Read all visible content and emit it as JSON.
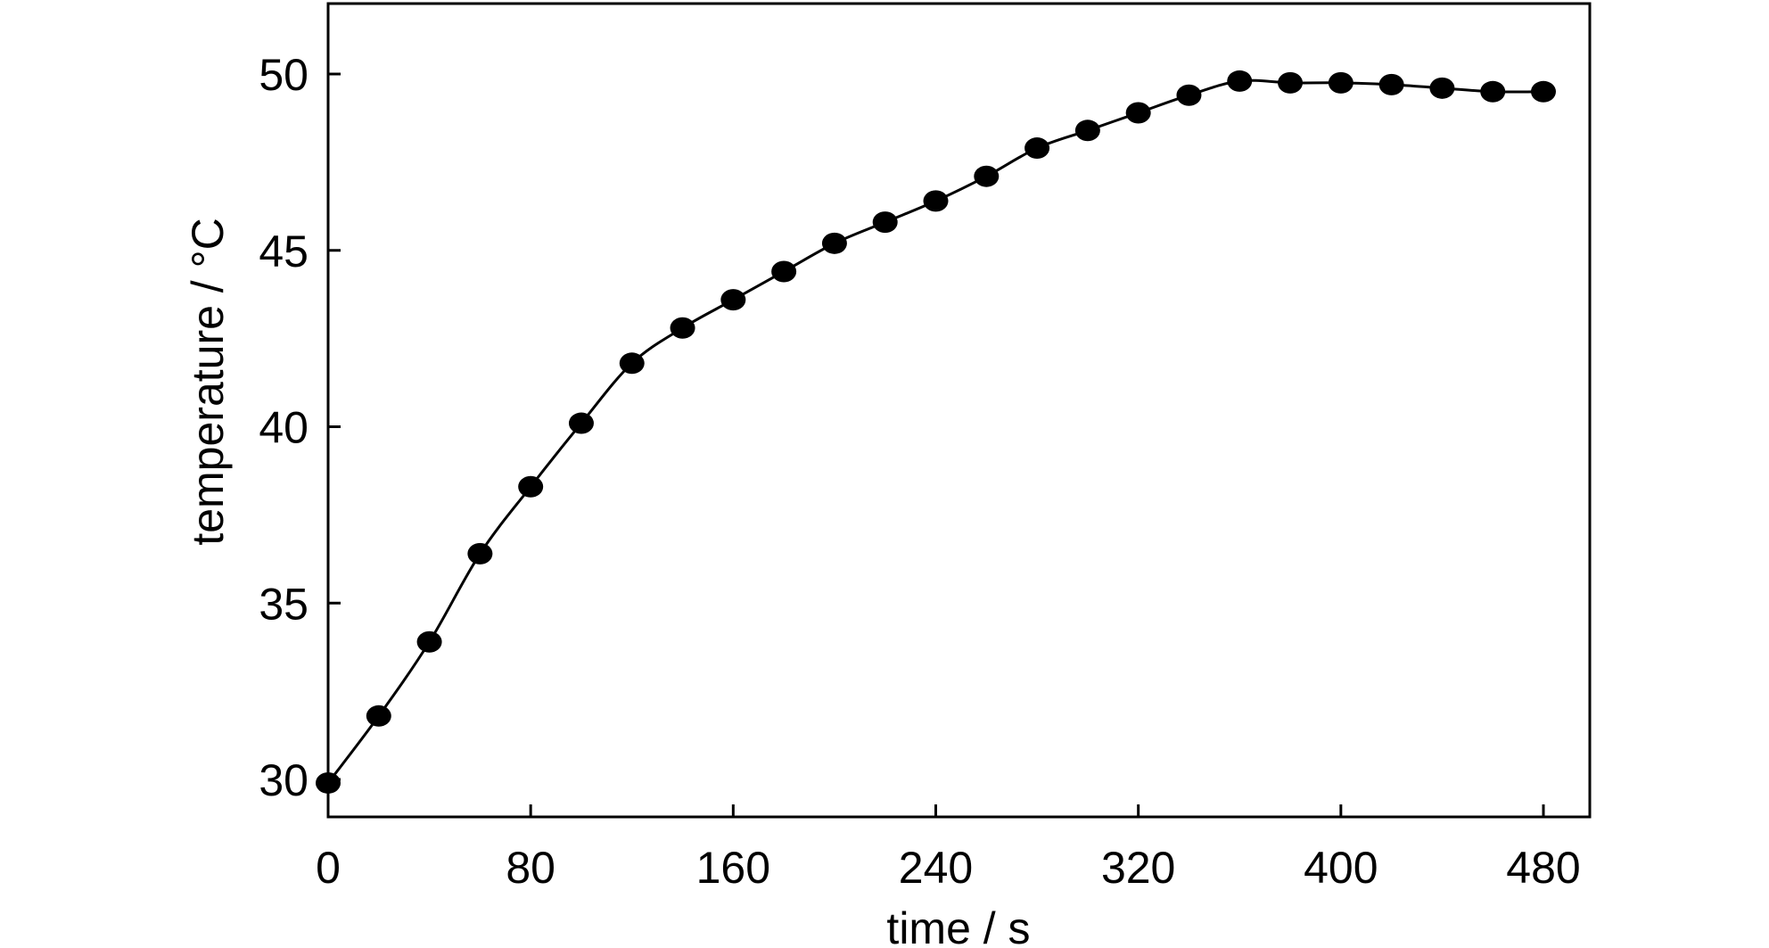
{
  "chart_data": {
    "type": "line",
    "title": "",
    "xlabel": "time / s",
    "ylabel": "temperature / °C",
    "xlim": [
      0,
      500
    ],
    "ylim": [
      28.8,
      52
    ],
    "xticks": [
      0,
      80,
      160,
      240,
      320,
      400,
      480
    ],
    "yticks": [
      30,
      35,
      40,
      45,
      50
    ],
    "grid": false,
    "legend": "none",
    "colors": {
      "line": "#000000",
      "marker": "#000000",
      "axis": "#000000"
    },
    "series": [
      {
        "x": [
          0,
          20,
          40,
          60,
          80,
          100,
          120,
          140,
          160,
          180,
          200,
          220,
          240,
          260,
          280,
          300,
          320,
          340,
          360,
          380,
          400,
          420,
          440,
          460,
          480
        ],
        "y": [
          29.9,
          31.8,
          33.9,
          36.4,
          38.3,
          40.1,
          41.8,
          42.8,
          43.6,
          44.4,
          45.2,
          45.8,
          46.4,
          47.1,
          47.9,
          48.4,
          48.9,
          49.4,
          49.8,
          49.75,
          49.75,
          49.7,
          49.6,
          49.5,
          49.5
        ]
      }
    ]
  }
}
